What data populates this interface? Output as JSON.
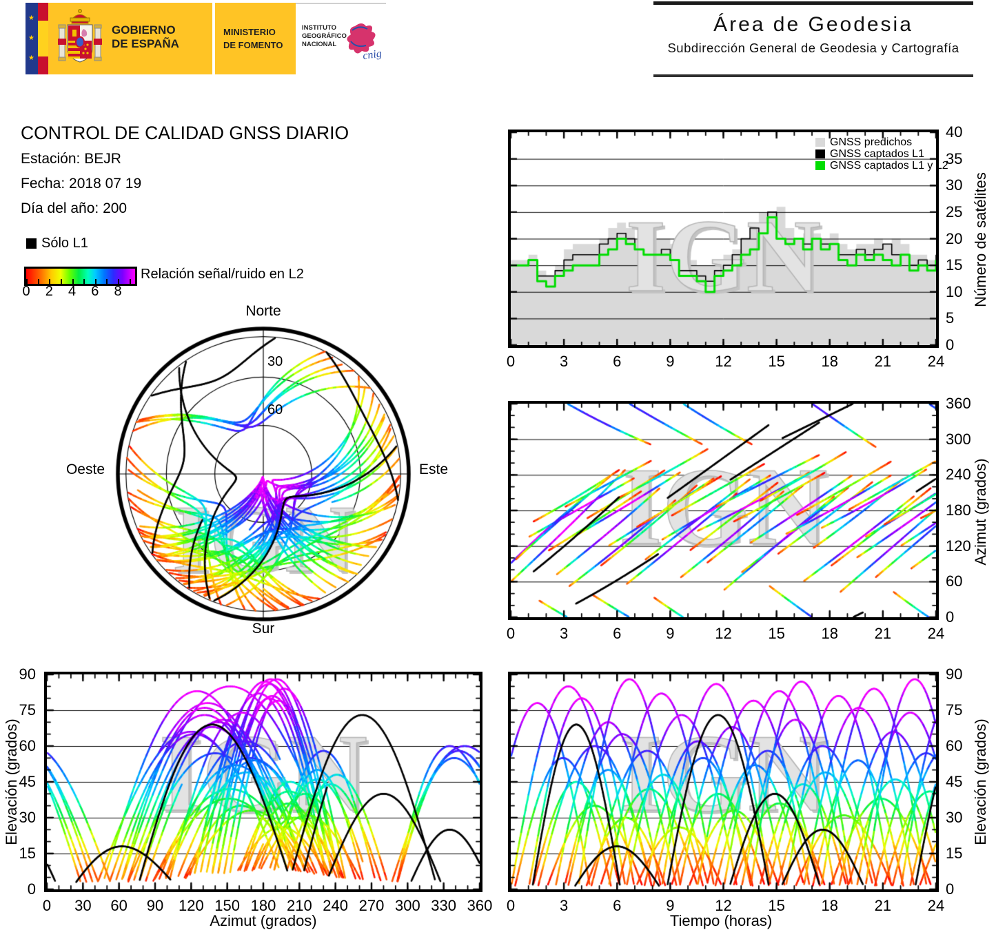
{
  "header": {
    "banner": {
      "gobierno_line1": "GOBIERNO",
      "gobierno_line2": "DE ESPAÑA",
      "ministerio_line1": "MINISTERIO",
      "ministerio_line2": "DE FOMENTO",
      "ign_line1": "INSTITUTO",
      "ign_line2": "GEOGRÁFICO",
      "ign_line3": "NACIONAL",
      "cnig": "cnig",
      "colors": {
        "banner_yellow": "#ffc425",
        "eu_blue": "#21398c",
        "flag_red": "#c8102e",
        "flag_yellow": "#ffd21e",
        "cnig_pink": "#d6336c",
        "cnig_blue": "#2b4ea8"
      }
    },
    "area": {
      "title": "Área de Geodesia",
      "subtitle": "Subdirección General de Geodesia y Cartografía"
    }
  },
  "info": {
    "title": "CONTROL DE CALIDAD GNSS DIARIO",
    "station": "Estación: BEJR",
    "date": "Fecha: 2018 07 19",
    "doy": "Día del año: 200"
  },
  "legend_l1": {
    "label": "Sólo L1",
    "color": "#000000"
  },
  "colorbar": {
    "label": "Relación señal/ruido en L2",
    "tick_labels": [
      "0",
      "2",
      "4",
      "6",
      "8"
    ],
    "tick_values": [
      0,
      2,
      4,
      6,
      8
    ],
    "min": 0,
    "max": 9.5,
    "stops": [
      [
        0,
        "#ff0000"
      ],
      [
        1.2,
        "#ff6600"
      ],
      [
        2.2,
        "#ffcc00"
      ],
      [
        3.0,
        "#eeff00"
      ],
      [
        3.8,
        "#66ff00"
      ],
      [
        4.6,
        "#00ee44"
      ],
      [
        5.4,
        "#00ffbb"
      ],
      [
        6.0,
        "#00ccff"
      ],
      [
        6.8,
        "#0077ff"
      ],
      [
        7.6,
        "#2b2bff"
      ],
      [
        8.4,
        "#7a00ff"
      ],
      [
        9.5,
        "#ff00ff"
      ]
    ]
  },
  "skyplot": {
    "north": "Norte",
    "south": "Sur",
    "east": "Este",
    "west": "Oeste",
    "ring_label_30": "30",
    "ring_label_60": "60",
    "elevation_rings": [
      30,
      60
    ],
    "mask_elevation": 5
  },
  "watermark": "IGN",
  "chart_data": [
    {
      "id": "sat_count",
      "type": "area",
      "ylabel": "Número de satélites",
      "xlim": [
        0,
        24
      ],
      "ylim": [
        0,
        40
      ],
      "xticks": [
        0,
        3,
        6,
        9,
        12,
        15,
        18,
        21,
        24
      ],
      "yticks": [
        0,
        5,
        10,
        15,
        20,
        25,
        30,
        35,
        40
      ],
      "grid_y": [
        5,
        10,
        15,
        20,
        25,
        30,
        35
      ],
      "legend": [
        {
          "label": "GNSS predichos",
          "color": "#d9d9d9"
        },
        {
          "label": "GNSS captados L1",
          "color": "#000000"
        },
        {
          "label": "GNSS captados L1 y L2",
          "color": "#00dd00"
        }
      ],
      "x_step_hours": 0.5,
      "series": [
        {
          "name": "GNSS predichos",
          "style": "filled-step",
          "color": "#d9d9d9",
          "values": [
            16,
            16,
            17,
            14,
            13,
            15,
            18,
            19,
            19,
            19,
            20,
            22,
            23,
            22,
            20,
            21,
            20,
            20,
            19,
            17,
            16,
            15,
            15,
            16,
            17,
            18,
            20,
            23,
            25,
            25,
            26,
            22,
            20,
            21,
            21,
            20,
            21,
            19,
            18,
            19,
            19,
            20,
            19,
            20,
            19,
            17,
            17,
            16,
            17
          ]
        },
        {
          "name": "GNSS captados L1",
          "style": "step",
          "color": "#000000",
          "values": [
            15,
            15,
            16,
            13,
            13,
            14,
            16,
            17,
            17,
            17,
            19,
            20,
            21,
            20,
            18,
            17,
            17,
            18,
            16,
            14,
            14,
            13,
            12,
            14,
            15,
            17,
            20,
            22,
            21,
            25,
            20,
            19,
            20,
            19,
            20,
            19,
            19,
            17,
            17,
            18,
            17,
            18,
            19,
            17,
            17,
            15,
            16,
            15,
            17
          ]
        },
        {
          "name": "GNSS captados L1 y L2",
          "style": "step",
          "color": "#00dd00",
          "values": [
            15,
            15,
            16,
            12,
            11,
            13,
            14,
            15,
            15,
            15,
            17,
            18,
            20,
            19,
            18,
            17,
            17,
            17,
            16,
            13,
            13,
            12,
            10,
            13,
            14,
            15,
            17,
            18,
            21,
            24,
            20,
            19,
            20,
            18,
            20,
            18,
            19,
            16,
            15,
            17,
            16,
            17,
            16,
            15,
            17,
            14,
            15,
            14,
            16
          ]
        }
      ]
    },
    {
      "id": "azimuth_time",
      "type": "line",
      "ylabel": "Azimut (grados)",
      "xlim": [
        0,
        24
      ],
      "ylim": [
        0,
        360
      ],
      "xticks": [
        0,
        3,
        6,
        9,
        12,
        15,
        18,
        21,
        24
      ],
      "yticks": [
        0,
        60,
        120,
        180,
        240,
        300,
        360
      ],
      "grid_y": [
        60,
        120,
        180,
        240,
        300
      ],
      "series_ref": "satellite_passes"
    },
    {
      "id": "skyplot",
      "type": "polar-tracks",
      "series_ref": "satellite_passes"
    },
    {
      "id": "elev_azimuth",
      "type": "line",
      "xlabel": "Azimut (grados)",
      "ylabel": "Elevación (grados)",
      "xlim": [
        0,
        360
      ],
      "ylim": [
        0,
        90
      ],
      "xticks": [
        0,
        30,
        60,
        90,
        120,
        150,
        180,
        210,
        240,
        270,
        300,
        330,
        360
      ],
      "yticks": [
        0,
        15,
        30,
        45,
        60,
        75,
        90
      ],
      "grid_y": [
        15,
        30,
        45,
        60,
        75
      ],
      "series_ref": "satellite_passes"
    },
    {
      "id": "elev_time",
      "type": "line",
      "xlabel": "Tiempo (horas)",
      "ylabel": "Elevación (grados)",
      "xlim": [
        0,
        24
      ],
      "ylim": [
        0,
        90
      ],
      "xticks": [
        0,
        3,
        6,
        9,
        12,
        15,
        18,
        21,
        24
      ],
      "yticks": [
        0,
        15,
        30,
        45,
        60,
        75,
        90
      ],
      "grid_y": [
        15,
        30,
        45,
        60,
        75
      ],
      "series_ref": "satellite_passes"
    }
  ],
  "satellite_passes": {
    "format": [
      "t0_h",
      "dur_h",
      "az_rise",
      "az_mid",
      "az_set",
      "el_max",
      "snr_gamma",
      "snr_max",
      "l1_only"
    ],
    "passes": [
      [
        -1.5,
        6.0,
        45,
        140,
        210,
        78,
        0.8,
        9.5,
        0
      ],
      [
        0.0,
        6.5,
        60,
        150,
        250,
        85,
        0.7,
        9.5,
        0
      ],
      [
        0.2,
        5.5,
        95,
        170,
        240,
        55,
        1.0,
        7.5,
        0
      ],
      [
        1.0,
        6.0,
        135,
        185,
        235,
        80,
        0.75,
        9.5,
        0
      ],
      [
        1.2,
        5.0,
        160,
        200,
        250,
        45,
        1.1,
        5.5,
        0
      ],
      [
        1.5,
        6.5,
        30,
        -30,
        -70,
        60,
        0.9,
        8.0,
        0
      ],
      [
        2.0,
        5.5,
        110,
        160,
        215,
        35,
        1.2,
        4.5,
        0
      ],
      [
        2.5,
        6.0,
        70,
        140,
        220,
        70,
        0.8,
        9.0,
        0
      ],
      [
        3.0,
        5.0,
        185,
        225,
        265,
        50,
        1.0,
        6.5,
        0
      ],
      [
        3.2,
        6.2,
        50,
        120,
        200,
        65,
        0.85,
        8.5,
        0
      ],
      [
        3.8,
        5.8,
        140,
        190,
        245,
        88,
        0.7,
        9.5,
        0
      ],
      [
        4.2,
        4.6,
        165,
        205,
        250,
        30,
        1.25,
        4.0,
        0
      ],
      [
        4.5,
        6.4,
        40,
        -20,
        -70,
        58,
        0.95,
        7.8,
        0
      ],
      [
        5.0,
        5.6,
        85,
        150,
        225,
        42,
        1.1,
        5.2,
        0
      ],
      [
        5.5,
        6.0,
        120,
        175,
        235,
        82,
        0.72,
        9.5,
        0
      ],
      [
        6.0,
        5.2,
        200,
        240,
        285,
        48,
        1.05,
        6.0,
        0
      ],
      [
        6.5,
        6.3,
        55,
        130,
        210,
        73,
        0.8,
        9.2,
        0
      ],
      [
        7.0,
        5.0,
        150,
        195,
        240,
        26,
        1.3,
        3.5,
        0
      ],
      [
        7.5,
        6.1,
        95,
        165,
        235,
        62,
        0.9,
        8.2,
        0
      ],
      [
        8.0,
        5.7,
        35,
        -25,
        -70,
        55,
        1.0,
        7.2,
        0
      ],
      [
        8.5,
        6.2,
        130,
        185,
        240,
        86,
        0.7,
        9.5,
        0
      ],
      [
        9.0,
        5.4,
        170,
        215,
        260,
        40,
        1.15,
        5.0,
        0
      ],
      [
        9.5,
        6.0,
        65,
        135,
        215,
        68,
        0.85,
        8.8,
        0
      ],
      [
        10.0,
        5.2,
        110,
        170,
        230,
        33,
        1.2,
        4.2,
        0
      ],
      [
        10.5,
        6.4,
        145,
        190,
        245,
        79,
        0.75,
        9.5,
        0
      ],
      [
        11.0,
        5.6,
        90,
        155,
        225,
        52,
        1.0,
        6.8,
        0
      ],
      [
        11.5,
        6.0,
        185,
        230,
        275,
        58,
        0.95,
        7.6,
        0
      ],
      [
        12.0,
        6.3,
        45,
        125,
        205,
        83,
        0.72,
        9.5,
        0
      ],
      [
        12.5,
        5.3,
        160,
        200,
        245,
        36,
        1.18,
        4.6,
        0
      ],
      [
        13.0,
        6.1,
        75,
        145,
        220,
        71,
        0.82,
        9.0,
        0
      ],
      [
        13.5,
        5.8,
        125,
        180,
        240,
        87,
        0.7,
        9.5,
        0
      ],
      [
        14.0,
        5.0,
        195,
        235,
        280,
        44,
        1.1,
        5.6,
        0
      ],
      [
        14.5,
        6.2,
        55,
        -15,
        -75,
        60,
        0.92,
        8.0,
        0
      ],
      [
        15.0,
        5.5,
        105,
        165,
        230,
        49,
        1.05,
        6.3,
        0
      ],
      [
        15.5,
        6.0,
        140,
        185,
        240,
        81,
        0.74,
        9.5,
        0
      ],
      [
        16.0,
        5.6,
        170,
        215,
        265,
        31,
        1.22,
        4.0,
        0
      ],
      [
        16.5,
        6.3,
        60,
        130,
        205,
        76,
        0.78,
        9.4,
        0
      ],
      [
        17.0,
        5.2,
        115,
        170,
        235,
        54,
        1.0,
        7.0,
        0
      ],
      [
        17.5,
        6.0,
        150,
        195,
        250,
        84,
        0.71,
        9.5,
        0
      ],
      [
        18.0,
        5.8,
        85,
        150,
        220,
        38,
        1.15,
        4.8,
        0
      ],
      [
        18.5,
        6.2,
        40,
        120,
        200,
        66,
        0.88,
        8.6,
        0
      ],
      [
        19.0,
        5.4,
        180,
        225,
        270,
        46,
        1.08,
        5.8,
        0
      ],
      [
        19.5,
        6.1,
        100,
        160,
        230,
        74,
        0.8,
        9.3,
        0
      ],
      [
        20.0,
        5.6,
        135,
        185,
        240,
        88,
        0.7,
        9.5,
        0
      ],
      [
        20.5,
        5.9,
        65,
        140,
        215,
        57,
        0.95,
        7.4,
        0
      ],
      [
        21.0,
        5.3,
        155,
        200,
        250,
        41,
        1.12,
        5.1,
        0
      ],
      [
        21.5,
        6.2,
        45,
        -25,
        -75,
        59,
        0.93,
        7.9,
        0
      ],
      [
        22.0,
        5.7,
        120,
        175,
        235,
        80,
        0.75,
        9.5,
        0
      ],
      [
        22.5,
        6.0,
        80,
        145,
        215,
        63,
        0.9,
        8.4,
        0
      ],
      [
        23.0,
        5.5,
        165,
        205,
        255,
        35,
        1.2,
        4.4,
        0
      ],
      [
        1.2,
        5.0,
        75,
        135,
        205,
        69,
        0.8,
        0,
        1
      ],
      [
        8.8,
        5.8,
        200,
        262,
        325,
        73,
        0.8,
        0,
        1
      ],
      [
        3.5,
        5.0,
        20,
        60,
        110,
        18,
        1.0,
        0,
        1
      ],
      [
        12.3,
        5.2,
        230,
        280,
        330,
        40,
        1.0,
        0,
        1
      ],
      [
        22.8,
        5.6,
        210,
        265,
        320,
        70,
        0.85,
        0,
        1
      ],
      [
        15.2,
        4.8,
        300,
        335,
        370,
        25,
        1.0,
        0,
        1
      ]
    ]
  }
}
